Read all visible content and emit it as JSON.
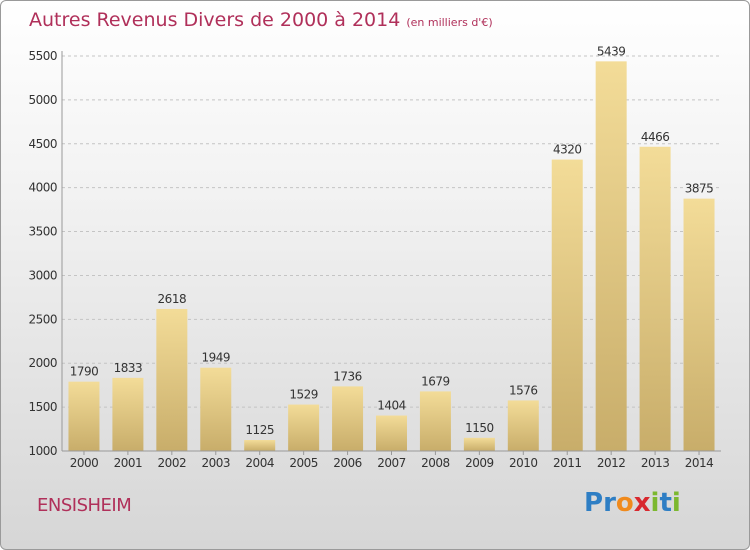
{
  "title": "Autres Revenus Divers de 2000 à 2014",
  "unit": "(en milliers d'€)",
  "city": "ENSISHEIM",
  "brand": {
    "letters": [
      "P",
      "r",
      "o",
      "x",
      "i",
      "t",
      "i"
    ],
    "colors": [
      "#2e7ec4",
      "#2e7ec4",
      "#f08a1c",
      "#d8282e",
      "#7cb82f",
      "#2e7ec4",
      "#7cb82f"
    ]
  },
  "colors": {
    "title": "#b0305a",
    "bar_top": "#f3dc98",
    "bar_bottom": "#c8ad6a",
    "grid": "#c4c4c4"
  },
  "chart_data": {
    "type": "bar",
    "categories": [
      "2000",
      "2001",
      "2002",
      "2003",
      "2004",
      "2005",
      "2006",
      "2007",
      "2008",
      "2009",
      "2010",
      "2011",
      "2012",
      "2013",
      "2014"
    ],
    "values": [
      1790,
      1833,
      2618,
      1949,
      1125,
      1529,
      1736,
      1404,
      1679,
      1150,
      1576,
      4320,
      5439,
      4466,
      3875
    ],
    "yticks": [
      1000,
      1500,
      2000,
      2500,
      3000,
      3500,
      4000,
      4500,
      5000,
      5500
    ],
    "ylim": [
      1000,
      5500
    ],
    "grid": true
  }
}
